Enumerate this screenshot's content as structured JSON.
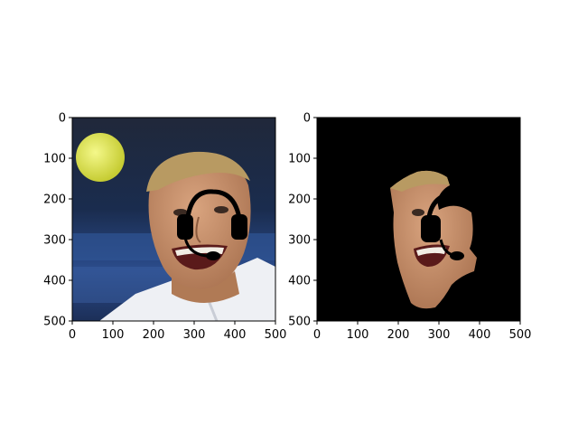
{
  "figure": {
    "panels": [
      {
        "name": "original-photo",
        "content": "photo of a man with blond hair grimacing, tennis ball at upper left, black headset overlay drawn on face",
        "xticks": [
          "0",
          "100",
          "200",
          "300",
          "400",
          "500"
        ],
        "yticks": [
          "0",
          "100",
          "200",
          "300",
          "400",
          "500"
        ],
        "xlim": [
          0,
          500
        ],
        "ylim": [
          500,
          0
        ]
      },
      {
        "name": "masked-face",
        "content": "same photo with everything except the face region blacked out; headset overlay visible",
        "xticks": [
          "0",
          "100",
          "200",
          "300",
          "400",
          "500"
        ],
        "yticks": [
          "0",
          "100",
          "200",
          "300",
          "400",
          "500"
        ],
        "xlim": [
          0,
          500
        ],
        "ylim": [
          500,
          0
        ]
      }
    ],
    "colors": {
      "background": "#ffffff",
      "mask": "#000000",
      "skin": "#c8906a",
      "hair": "#b89a62",
      "shirt": "#eef0f4",
      "ball": "#e2e94e",
      "bg_dark": "#16243e",
      "bg_blue": "#2b4c8c"
    }
  }
}
